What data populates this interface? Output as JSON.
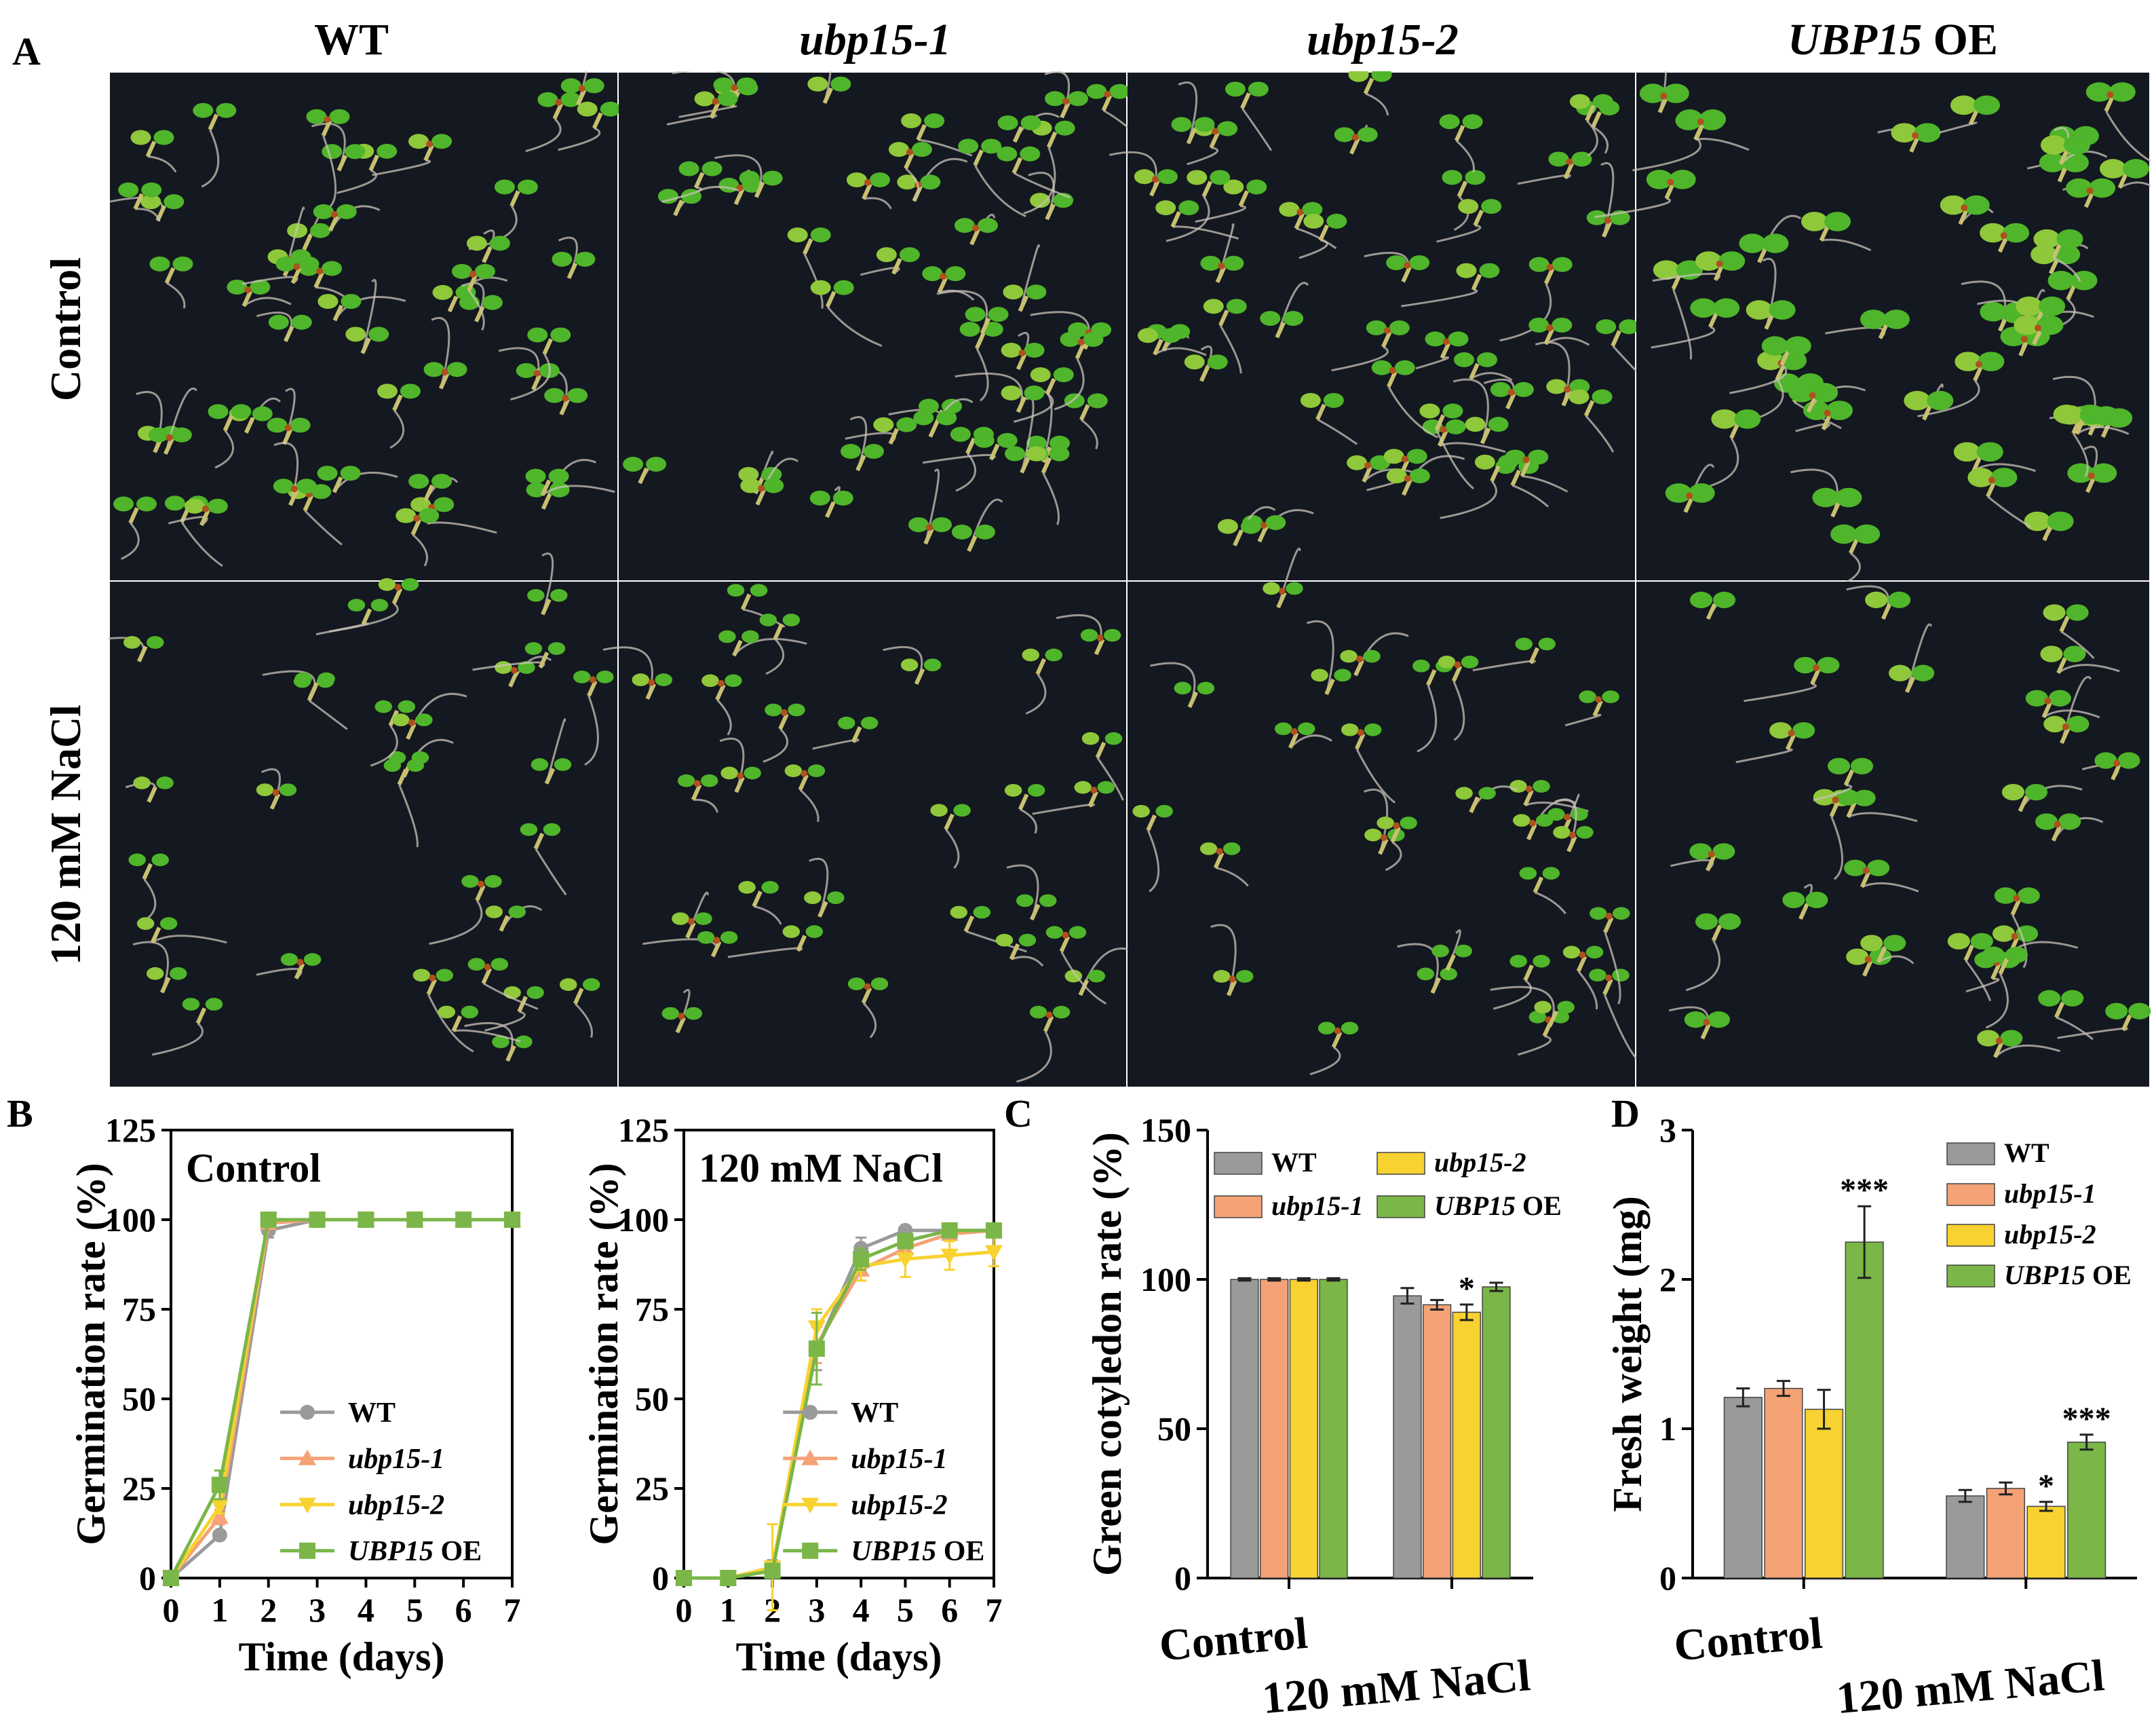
{
  "panel_labels": {
    "A": "A",
    "B": "B",
    "C": "C",
    "D": "D"
  },
  "photos": {
    "columns": [
      {
        "label": "WT",
        "italic": false
      },
      {
        "label": "ubp15-1",
        "italic": true
      },
      {
        "label": "ubp15-2",
        "italic": true
      },
      {
        "label": "UBP15",
        "suffix": " OE",
        "italic": true
      }
    ],
    "rows": [
      "Control",
      "120 mM NaCl"
    ],
    "tones": {
      "background": "#141820",
      "cotyledon": "#4fb52a",
      "cotyledon_light": "#8fc83a",
      "hypocotyl": "#c8c070",
      "root": "#c9c3b8",
      "seed_coat": "#b0501e"
    }
  },
  "genotype_colors": {
    "WT": "#9a9a9a",
    "ubp15-1": "#f4a276",
    "ubp15-2": "#f7d230",
    "UBP15 OE": "#7ab648"
  },
  "chart_data": [
    {
      "id": "B-control",
      "type": "line",
      "title": "Control",
      "xlabel": "Time (days)",
      "ylabel": "Germination rate (%)",
      "x": [
        0,
        1,
        2,
        3,
        4,
        5,
        6,
        7
      ],
      "xlim": [
        0,
        7
      ],
      "ylim": [
        0,
        125
      ],
      "yticks": [
        0,
        25,
        50,
        75,
        100,
        125
      ],
      "legend_position": "bottom-right",
      "series": [
        {
          "name": "WT",
          "marker": "circle",
          "values": [
            0,
            12,
            97,
            100,
            100,
            100,
            100,
            100
          ],
          "errors": [
            0,
            1,
            2,
            0,
            0,
            0,
            0,
            0
          ]
        },
        {
          "name": "ubp15-1",
          "italic": true,
          "marker": "triangle-up",
          "values": [
            0,
            17,
            99,
            100,
            100,
            100,
            100,
            100
          ],
          "errors": [
            0,
            2,
            1,
            0,
            0,
            0,
            0,
            0
          ]
        },
        {
          "name": "ubp15-2",
          "italic": true,
          "marker": "triangle-down",
          "values": [
            0,
            20,
            100,
            100,
            100,
            100,
            100,
            100
          ],
          "errors": [
            0,
            2,
            0,
            0,
            0,
            0,
            0,
            0
          ]
        },
        {
          "name": "UBP15",
          "suffix": " OE",
          "italic": true,
          "marker": "square",
          "values": [
            0,
            26,
            100,
            100,
            100,
            100,
            100,
            100
          ],
          "errors": [
            0,
            4,
            0,
            0,
            0,
            0,
            0,
            0
          ]
        }
      ]
    },
    {
      "id": "B-nacl",
      "type": "line",
      "title": "120 mM NaCl",
      "xlabel": "Time (days)",
      "ylabel": "Germination rate (%)",
      "x": [
        0,
        1,
        2,
        3,
        4,
        5,
        6,
        7
      ],
      "xlim": [
        0,
        7
      ],
      "ylim": [
        0,
        125
      ],
      "yticks": [
        0,
        25,
        50,
        75,
        100,
        125
      ],
      "legend_position": "bottom-right",
      "series": [
        {
          "name": "WT",
          "marker": "circle",
          "values": [
            0,
            0,
            3,
            64,
            92,
            97,
            97,
            97
          ],
          "errors": [
            0,
            0,
            2,
            6,
            3,
            1,
            1,
            1
          ]
        },
        {
          "name": "ubp15-1",
          "italic": true,
          "marker": "triangle-up",
          "values": [
            0,
            0,
            2,
            65,
            86,
            92,
            96,
            97
          ],
          "errors": [
            0,
            0,
            1,
            5,
            3,
            3,
            2,
            1
          ]
        },
        {
          "name": "ubp15-2",
          "italic": true,
          "marker": "triangle-down",
          "values": [
            0,
            0,
            3,
            70,
            87,
            89,
            90,
            91
          ],
          "errors": [
            0,
            0,
            12,
            5,
            4,
            5,
            4,
            4
          ]
        },
        {
          "name": "UBP15",
          "suffix": " OE",
          "italic": true,
          "marker": "square",
          "values": [
            0,
            0,
            2,
            64,
            89,
            94,
            97,
            97
          ],
          "errors": [
            0,
            0,
            1,
            10,
            3,
            2,
            1,
            1
          ]
        }
      ]
    },
    {
      "id": "C",
      "type": "bar",
      "ylabel": "Green cotyledon rate (%)",
      "categories": [
        "Control",
        "120 mM NaCl"
      ],
      "ylim": [
        0,
        150
      ],
      "yticks": [
        0,
        50,
        100,
        150
      ],
      "legend_position": "top",
      "series": [
        {
          "name": "WT",
          "values": [
            100,
            94.5
          ],
          "errors": [
            0.4,
            2.6
          ],
          "sig": [
            "",
            ""
          ]
        },
        {
          "name": "ubp15-1",
          "italic": true,
          "values": [
            100,
            91.5
          ],
          "errors": [
            0.4,
            1.6
          ],
          "sig": [
            "",
            ""
          ]
        },
        {
          "name": "ubp15-2",
          "italic": true,
          "values": [
            100,
            89
          ],
          "errors": [
            0.4,
            2.6
          ],
          "sig": [
            "",
            "*"
          ]
        },
        {
          "name": "UBP15",
          "suffix": " OE",
          "italic": true,
          "values": [
            100,
            97.5
          ],
          "errors": [
            0.4,
            1.4
          ],
          "sig": [
            "",
            ""
          ]
        }
      ]
    },
    {
      "id": "D",
      "type": "bar",
      "ylabel": "Fresh weight (mg)",
      "categories": [
        "Control",
        "120 mM NaCl"
      ],
      "ylim": [
        0,
        3
      ],
      "yticks": [
        0,
        1,
        2,
        3
      ],
      "legend_position": "top-right",
      "series": [
        {
          "name": "WT",
          "values": [
            1.21,
            0.55
          ],
          "errors": [
            0.06,
            0.04
          ],
          "sig": [
            "",
            ""
          ]
        },
        {
          "name": "ubp15-1",
          "italic": true,
          "values": [
            1.27,
            0.6
          ],
          "errors": [
            0.05,
            0.04
          ],
          "sig": [
            "",
            ""
          ]
        },
        {
          "name": "ubp15-2",
          "italic": true,
          "values": [
            1.13,
            0.48
          ],
          "errors": [
            0.13,
            0.03
          ],
          "sig": [
            "",
            "*"
          ]
        },
        {
          "name": "UBP15",
          "suffix": " OE",
          "italic": true,
          "values": [
            2.25,
            0.91
          ],
          "errors": [
            0.24,
            0.05
          ],
          "sig": [
            "***",
            "***"
          ]
        }
      ]
    }
  ]
}
